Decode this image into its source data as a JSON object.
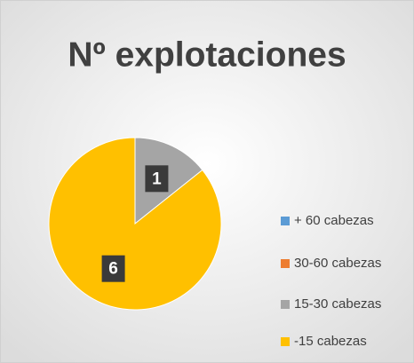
{
  "chart_data": {
    "type": "pie",
    "title": "Nº explotaciones",
    "categories": [
      "+ 60 cabezas",
      "30-60 cabezas",
      "15-30 cabezas",
      "-15 cabezas"
    ],
    "values": [
      0,
      0,
      1,
      6
    ],
    "colors": [
      "#5b9bd5",
      "#ed7d31",
      "#a5a5a5",
      "#ffc000"
    ],
    "legend": "right"
  }
}
